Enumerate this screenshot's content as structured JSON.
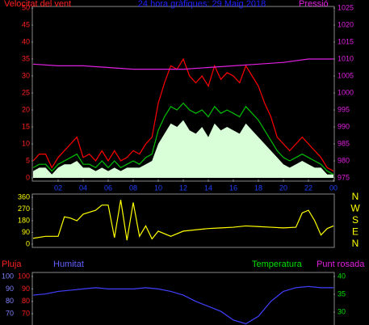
{
  "chart_data": [
    {
      "type": "line",
      "title": "24 hora gràfiques: 29 Maig 2018",
      "y_label": "Velocitat del vent",
      "y2_label": "Pressió",
      "xlim": [
        0,
        24
      ],
      "xticks": [
        {
          "value": 2,
          "label": "02"
        },
        {
          "value": 4,
          "label": "04"
        },
        {
          "value": 6,
          "label": "06"
        },
        {
          "value": 8,
          "label": "08"
        },
        10,
        12,
        14,
        16,
        18,
        20,
        22,
        {
          "value": 24,
          "label": "00"
        }
      ],
      "ylim": [
        0,
        50
      ],
      "yticks": [
        0,
        5,
        10,
        15,
        20,
        25,
        30,
        35,
        40,
        45,
        50
      ],
      "ycolor": "#ff2020",
      "y2lim": [
        975,
        1025
      ],
      "y2ticks": [
        975,
        980,
        985,
        990,
        995,
        1000,
        1005,
        1010,
        1015,
        1020,
        1025
      ],
      "y2color": "#e020e0",
      "x": [
        0,
        0.5,
        1,
        1.5,
        2,
        2.5,
        3,
        3.5,
        4,
        4.5,
        5,
        5.5,
        6,
        6.5,
        7,
        7.5,
        8,
        8.5,
        9,
        9.5,
        10,
        10.5,
        11,
        11.5,
        12,
        12.5,
        13,
        13.5,
        14,
        14.5,
        15,
        15.5,
        16,
        16.5,
        17,
        17.5,
        18,
        18.5,
        19,
        19.5,
        20,
        20.5,
        21,
        21.5,
        22,
        22.5,
        23,
        23.5,
        24
      ],
      "series": [
        {
          "color": "#ff0000",
          "values": [
            5,
            7,
            7,
            3,
            6,
            8,
            10,
            12,
            6,
            7,
            5,
            8,
            5,
            8,
            5,
            6,
            8,
            7,
            10,
            12,
            22,
            28,
            33,
            32,
            35,
            30,
            28,
            30,
            27,
            33,
            29,
            31,
            30,
            28,
            33,
            30,
            27,
            22,
            18,
            12,
            10,
            8,
            10,
            12,
            10,
            8,
            6,
            3,
            2
          ]
        },
        {
          "color": "#00c000",
          "values": [
            3,
            4,
            4,
            2,
            4,
            5,
            6,
            7,
            4,
            4,
            3,
            5,
            3,
            5,
            3,
            4,
            5,
            4,
            6,
            7,
            14,
            18,
            21,
            20,
            22,
            20,
            19,
            20,
            18,
            21,
            19,
            20,
            19,
            18,
            21,
            19,
            17,
            14,
            11,
            8,
            6,
            5,
            6,
            7,
            6,
            5,
            4,
            2,
            1
          ]
        },
        {
          "color": "#d8ffd8",
          "fill": true,
          "values": [
            2,
            3,
            3,
            1,
            3,
            4,
            4,
            5,
            3,
            3,
            2,
            3,
            2,
            3,
            2,
            3,
            3,
            3,
            4,
            5,
            10,
            13,
            16,
            15,
            17,
            14,
            13,
            15,
            12,
            16,
            14,
            15,
            14,
            13,
            16,
            14,
            12,
            10,
            8,
            6,
            4,
            3,
            4,
            5,
            4,
            3,
            3,
            1,
            1
          ]
        },
        {
          "color": "#e020e0",
          "axis": "y2",
          "x": [
            0,
            2,
            4,
            6,
            8,
            10,
            12,
            14,
            16,
            18,
            20,
            22,
            24
          ],
          "values": [
            1008.5,
            1008,
            1008,
            1007.5,
            1007,
            1007,
            1007,
            1007.5,
            1008,
            1008.5,
            1009,
            1010,
            1010
          ]
        }
      ]
    },
    {
      "type": "line",
      "xlim": [
        0,
        24
      ],
      "ylim": [
        0,
        360
      ],
      "yticks": [
        0,
        90,
        180,
        270,
        360
      ],
      "ycolor": "#ffff00",
      "compass_labels": [
        "N",
        "W",
        "S",
        "E",
        "N"
      ],
      "series": [
        {
          "color": "#ffff00",
          "x": [
            0,
            1,
            2,
            2.5,
            3,
            3.5,
            4,
            5,
            5.5,
            6,
            6.5,
            7,
            7.5,
            8,
            8.5,
            9,
            9.5,
            10,
            11,
            12,
            13,
            14,
            15,
            16,
            17,
            18,
            19,
            20,
            21,
            21.5,
            22,
            22.5,
            23,
            23.5,
            24
          ],
          "values": [
            45,
            60,
            60,
            210,
            200,
            180,
            230,
            260,
            300,
            300,
            50,
            340,
            30,
            320,
            60,
            140,
            40,
            100,
            60,
            100,
            110,
            120,
            125,
            130,
            140,
            135,
            130,
            125,
            130,
            240,
            260,
            180,
            70,
            120,
            140
          ]
        }
      ]
    },
    {
      "type": "line",
      "xlim": [
        0,
        24
      ],
      "labels": [
        {
          "text": "Pluja",
          "color": "#ff2020"
        },
        {
          "text": "Humitat",
          "color": "#6060ff"
        },
        {
          "text": "Temperatura",
          "color": "#00e000"
        },
        {
          "text": "Punt rosada",
          "color": "#e020e0"
        }
      ],
      "ylim": [
        61,
        100
      ],
      "yticks": [
        70,
        80,
        90,
        100
      ],
      "ycolor": "#8080ff",
      "y3lim": [
        61,
        100
      ],
      "y3ticks": [
        70,
        80,
        90,
        100
      ],
      "y3color": "#ff2020",
      "y2lim": [
        26.4,
        40
      ],
      "y2ticks": [
        30,
        35,
        40
      ],
      "y2color": "#00e000",
      "series": [
        {
          "color": "#4040ff",
          "x": [
            0,
            1,
            2,
            3,
            4,
            5,
            6,
            7,
            8,
            9,
            10,
            11,
            12,
            13,
            14,
            15,
            16,
            17,
            18,
            19,
            20,
            21,
            22,
            23,
            24
          ],
          "values": [
            85,
            86,
            88,
            89,
            90,
            91,
            90,
            90,
            90,
            91,
            90,
            88,
            85,
            80,
            76,
            72,
            65,
            62,
            68,
            80,
            88,
            91,
            92,
            91,
            91
          ]
        }
      ]
    }
  ]
}
